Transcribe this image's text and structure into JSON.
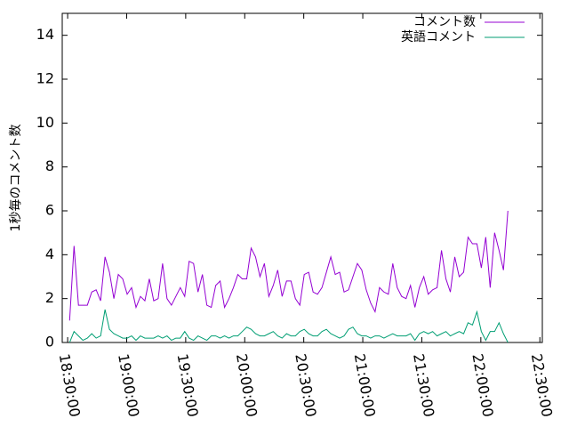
{
  "chart_data": {
    "type": "line",
    "ylabel": "1秒毎のコメント数",
    "x": [
      "18:31:00",
      "18:33:15",
      "18:35:30",
      "18:37:45",
      "18:40:00",
      "18:42:15",
      "18:44:30",
      "18:46:45",
      "18:49:00",
      "18:51:15",
      "18:53:30",
      "18:55:45",
      "18:58:00",
      "19:00:15",
      "19:02:30",
      "19:04:45",
      "19:07:00",
      "19:09:15",
      "19:11:30",
      "19:13:45",
      "19:16:00",
      "19:18:15",
      "19:20:30",
      "19:22:45",
      "19:25:00",
      "19:27:15",
      "19:29:30",
      "19:31:45",
      "19:34:00",
      "19:36:15",
      "19:38:30",
      "19:40:45",
      "19:43:00",
      "19:45:15",
      "19:47:30",
      "19:49:45",
      "19:52:00",
      "19:54:15",
      "19:56:30",
      "19:58:45",
      "20:01:00",
      "20:03:15",
      "20:05:30",
      "20:07:45",
      "20:10:00",
      "20:12:15",
      "20:14:30",
      "20:16:45",
      "20:19:00",
      "20:21:15",
      "20:23:30",
      "20:25:45",
      "20:28:00",
      "20:30:15",
      "20:32:30",
      "20:34:45",
      "20:37:00",
      "20:39:15",
      "20:41:30",
      "20:43:45",
      "20:46:00",
      "20:48:15",
      "20:50:30",
      "20:52:45",
      "20:55:00",
      "20:57:15",
      "20:59:30",
      "21:01:45",
      "21:04:00",
      "21:06:15",
      "21:08:30",
      "21:10:45",
      "21:13:00",
      "21:15:15",
      "21:17:30",
      "21:19:45",
      "21:22:00",
      "21:24:15",
      "21:26:30",
      "21:28:45",
      "21:31:00",
      "21:33:15",
      "21:35:30",
      "21:37:45",
      "21:40:00",
      "21:42:15",
      "21:44:30",
      "21:46:45",
      "21:49:00",
      "21:51:15",
      "21:53:30",
      "21:55:45",
      "21:58:00",
      "22:00:15",
      "22:02:30",
      "22:04:45",
      "22:07:00",
      "22:09:15",
      "22:11:30",
      "22:13:45"
    ],
    "series": [
      {
        "name": "コメント数",
        "color": "#9400d3",
        "values": [
          1.0,
          4.4,
          1.7,
          1.7,
          1.7,
          2.3,
          2.4,
          1.9,
          3.9,
          3.2,
          2.0,
          3.1,
          2.9,
          2.2,
          2.5,
          1.6,
          2.1,
          1.9,
          2.9,
          1.9,
          2.0,
          3.6,
          2.0,
          1.7,
          2.1,
          2.5,
          2.1,
          3.7,
          3.6,
          2.3,
          3.1,
          1.7,
          1.6,
          2.6,
          2.8,
          1.6,
          2.0,
          2.5,
          3.1,
          2.9,
          2.9,
          4.3,
          3.9,
          3.0,
          3.6,
          2.1,
          2.6,
          3.3,
          2.1,
          2.8,
          2.8,
          2.0,
          1.7,
          3.1,
          3.2,
          2.3,
          2.2,
          2.5,
          3.2,
          3.9,
          3.1,
          3.2,
          2.3,
          2.4,
          3.0,
          3.6,
          3.3,
          2.4,
          1.8,
          1.4,
          2.5,
          2.3,
          2.2,
          3.6,
          2.5,
          2.1,
          2.0,
          2.6,
          1.6,
          2.5,
          3.0,
          2.2,
          2.4,
          2.5,
          4.2,
          2.9,
          2.3,
          3.9,
          3.0,
          3.2,
          4.8,
          4.5,
          4.5,
          3.4,
          4.8,
          2.5,
          5.0,
          4.2,
          3.3,
          6.0
        ]
      },
      {
        "name": "英語コメント",
        "color": "#009e73",
        "values": [
          0,
          0.5,
          0.3,
          0.1,
          0.2,
          0.4,
          0.2,
          0.3,
          1.5,
          0.6,
          0.4,
          0.3,
          0.2,
          0.2,
          0.3,
          0.1,
          0.3,
          0.2,
          0.2,
          0.2,
          0.3,
          0.2,
          0.3,
          0.1,
          0.2,
          0.2,
          0.5,
          0.2,
          0.1,
          0.3,
          0.2,
          0.1,
          0.3,
          0.3,
          0.2,
          0.3,
          0.2,
          0.3,
          0.3,
          0.5,
          0.7,
          0.6,
          0.4,
          0.3,
          0.3,
          0.4,
          0.5,
          0.3,
          0.2,
          0.4,
          0.3,
          0.3,
          0.5,
          0.6,
          0.4,
          0.3,
          0.3,
          0.5,
          0.6,
          0.4,
          0.3,
          0.2,
          0.3,
          0.6,
          0.7,
          0.4,
          0.3,
          0.3,
          0.2,
          0.3,
          0.3,
          0.2,
          0.3,
          0.4,
          0.3,
          0.3,
          0.3,
          0.4,
          0.1,
          0.4,
          0.5,
          0.4,
          0.5,
          0.3,
          0.4,
          0.5,
          0.3,
          0.4,
          0.5,
          0.4,
          0.9,
          0.8,
          1.4,
          0.5,
          0.1,
          0.5,
          0.5,
          0.9,
          0.4,
          0
        ]
      }
    ],
    "xlim": [
      "18:27:15",
      "22:31:15"
    ],
    "xticks": [
      "18:30:00",
      "19:00:00",
      "19:30:00",
      "20:00:00",
      "20:30:00",
      "21:00:00",
      "21:30:00",
      "22:00:00",
      "22:30:00"
    ],
    "ylim": [
      0,
      15
    ],
    "yticks": [
      0,
      2,
      4,
      6,
      8,
      10,
      12,
      14
    ],
    "legend": "top-right"
  }
}
